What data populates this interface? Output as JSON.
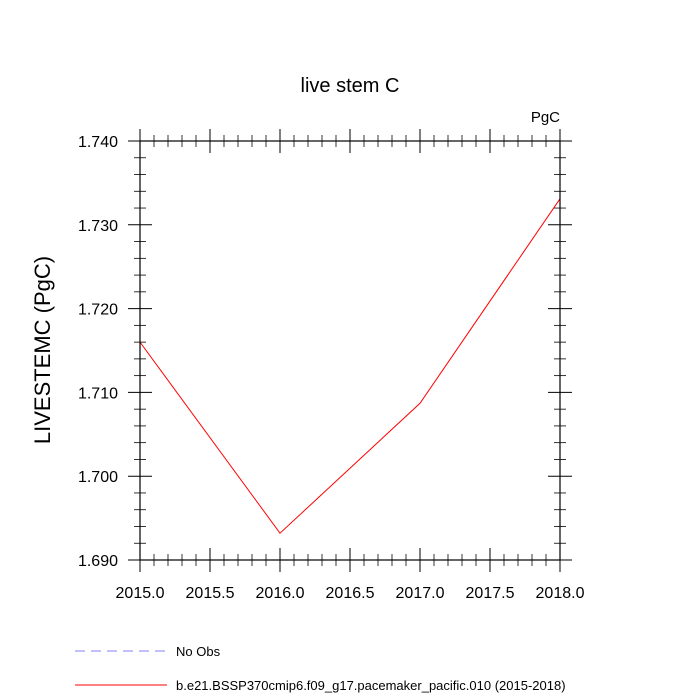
{
  "chart_data": {
    "type": "line",
    "title": "live stem C",
    "units_label": "PgC",
    "ylabel": "LIVESTEMC  (PgC)",
    "xlabel": "",
    "xlim": [
      2015.0,
      2018.0
    ],
    "ylim": [
      1.69,
      1.74
    ],
    "x_ticks": [
      2015.0,
      2015.5,
      2016.0,
      2016.5,
      2017.0,
      2017.5,
      2018.0
    ],
    "x_tick_labels": [
      "2015.0",
      "2015.5",
      "2016.0",
      "2016.5",
      "2017.0",
      "2017.5",
      "2018.0"
    ],
    "y_ticks": [
      1.69,
      1.7,
      1.71,
      1.72,
      1.73,
      1.74
    ],
    "y_tick_labels": [
      "1.690",
      "1.700",
      "1.710",
      "1.720",
      "1.730",
      "1.740"
    ],
    "grid": false,
    "legend_position": "bottom-left",
    "series": [
      {
        "name": "b.e21.BSSP370cmip6.f09_g17.pacemaker_pacific.010 (2015-2018)",
        "color": "#ff0000",
        "dash": "solid",
        "x": [
          2015.0,
          2016.0,
          2017.0,
          2018.0
        ],
        "y": [
          1.716,
          1.6932,
          1.7087,
          1.7331
        ]
      }
    ],
    "legend": [
      {
        "label": "No Obs",
        "color": "#8080ff",
        "dash": "dashed"
      },
      {
        "label": "b.e21.BSSP370cmip6.f09_g17.pacemaker_pacific.010 (2015-2018)",
        "color": "#ff0000",
        "dash": "solid"
      }
    ]
  }
}
